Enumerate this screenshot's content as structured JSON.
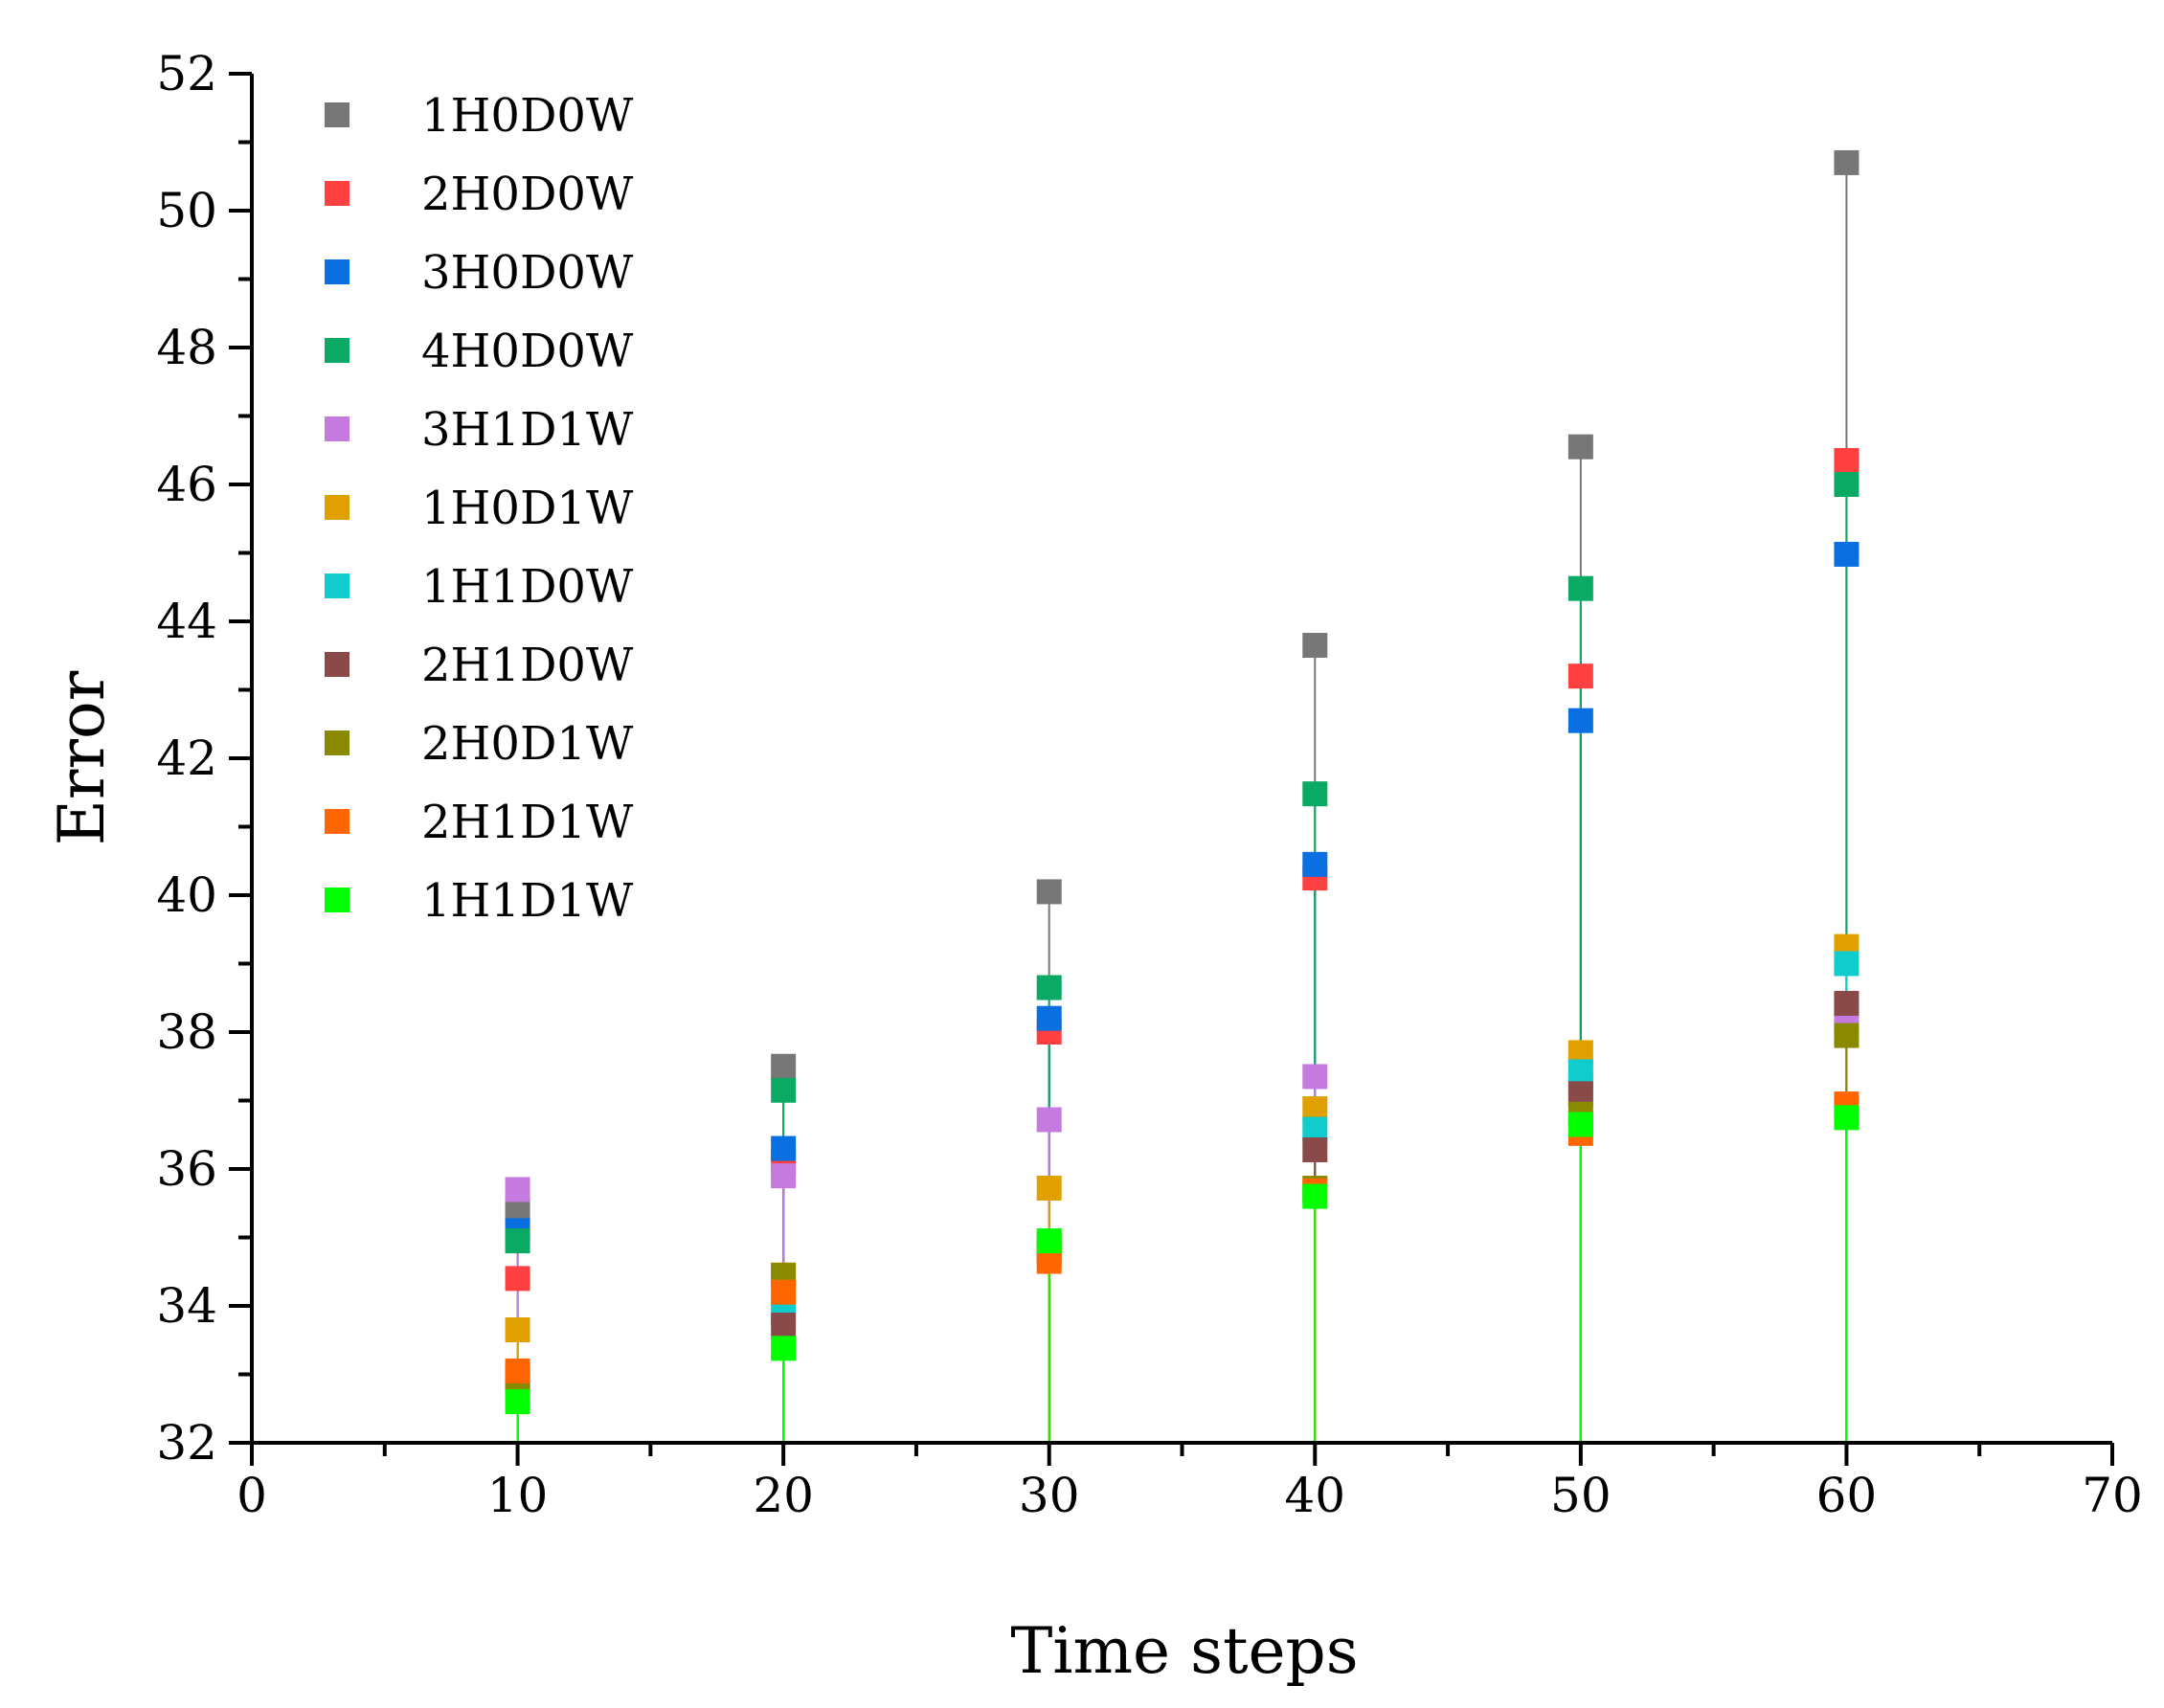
{
  "chart_data": {
    "type": "scatter",
    "title": "",
    "xlabel": "Time steps",
    "ylabel": "Error",
    "xlim": [
      0,
      70
    ],
    "ylim": [
      32,
      52
    ],
    "x_ticks": [
      "0",
      "10",
      "20",
      "30",
      "40",
      "50",
      "60",
      "70"
    ],
    "y_ticks": [
      "32",
      "34",
      "36",
      "38",
      "40",
      "42",
      "44",
      "46",
      "48",
      "50",
      "52"
    ],
    "grid": false,
    "legend_position": "top-left",
    "x": [
      10,
      20,
      30,
      40,
      50,
      60
    ],
    "series": [
      {
        "name": "1H0D0W",
        "color": "#777777",
        "values": [
          35.4,
          37.5,
          40.05,
          43.65,
          46.55,
          50.7
        ]
      },
      {
        "name": "2H0D0W",
        "color": "#ff4040",
        "values": [
          34.4,
          36.1,
          38.0,
          40.25,
          43.2,
          46.35
        ]
      },
      {
        "name": "3H0D0W",
        "color": "#0a6fe0",
        "values": [
          35.1,
          36.3,
          38.2,
          40.45,
          42.55,
          44.98
        ]
      },
      {
        "name": "4H0D0W",
        "color": "#0aaa64",
        "values": [
          34.95,
          37.15,
          38.65,
          41.48,
          44.48,
          46.0
        ]
      },
      {
        "name": "3H1D1W",
        "color": "#c57ae0",
        "values": [
          35.7,
          35.9,
          36.72,
          37.35,
          37.2,
          38.2
        ]
      },
      {
        "name": "1H0D1W",
        "color": "#e0a000",
        "values": [
          33.65,
          34.45,
          35.72,
          36.88,
          37.7,
          39.25
        ]
      },
      {
        "name": "1H1D0W",
        "color": "#10cccc",
        "values": [
          32.95,
          33.9,
          34.75,
          36.58,
          37.42,
          39.0
        ]
      },
      {
        "name": "2H1D0W",
        "color": "#8b4a4a",
        "values": [
          32.95,
          33.72,
          34.9,
          36.28,
          37.1,
          38.42
        ]
      },
      {
        "name": "2H0D1W",
        "color": "#8a8a00",
        "values": [
          32.85,
          34.45,
          34.8,
          35.72,
          36.8,
          37.95
        ]
      },
      {
        "name": "2H1D1W",
        "color": "#ff6600",
        "values": [
          33.05,
          34.2,
          34.65,
          35.68,
          36.52,
          36.95
        ]
      },
      {
        "name": "1H1D1W",
        "color": "#00ff00",
        "values": [
          32.6,
          33.38,
          34.95,
          35.6,
          36.65,
          36.75
        ]
      }
    ]
  }
}
